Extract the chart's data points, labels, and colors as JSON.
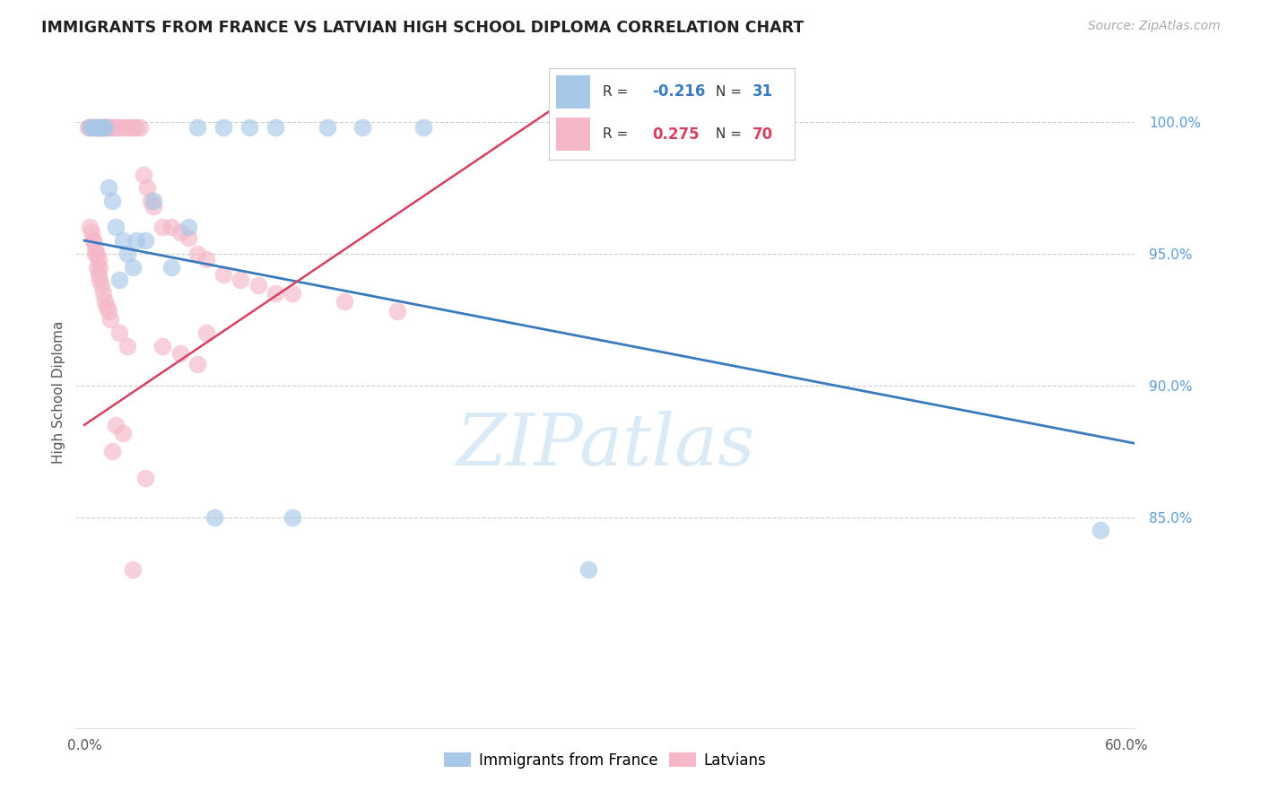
{
  "title": "IMMIGRANTS FROM FRANCE VS LATVIAN HIGH SCHOOL DIPLOMA CORRELATION CHART",
  "source": "Source: ZipAtlas.com",
  "ylabel": "High School Diploma",
  "ytick_values": [
    0.85,
    0.9,
    0.95,
    1.0
  ],
  "xlim": [
    -0.005,
    0.605
  ],
  "ylim": [
    0.77,
    1.025
  ],
  "legend_r_blue": "-0.216",
  "legend_n_blue": "31",
  "legend_r_pink": "0.275",
  "legend_n_pink": "70",
  "blue_scatter_color": "#a8c8e8",
  "pink_scatter_color": "#f4b8c8",
  "blue_line_color": "#3a7abf",
  "pink_line_color": "#d64060",
  "ytick_color": "#5b9bd5",
  "watermark_color": "#daeaf7",
  "blue_line_x": [
    0.0,
    0.605
  ],
  "blue_line_y": [
    0.955,
    0.878
  ],
  "pink_line_x": [
    0.0,
    0.27
  ],
  "pink_line_y": [
    0.885,
    1.005
  ],
  "blue_scatter_x": [
    0.003,
    0.005,
    0.007,
    0.009,
    0.01,
    0.011,
    0.012,
    0.014,
    0.016,
    0.018,
    0.022,
    0.025,
    0.03,
    0.04,
    0.05,
    0.06,
    0.065,
    0.08,
    0.095,
    0.11,
    0.14,
    0.16,
    0.195,
    0.585,
    0.35,
    0.02,
    0.028,
    0.035,
    0.075,
    0.12,
    0.29
  ],
  "blue_scatter_y": [
    0.998,
    0.998,
    0.998,
    0.998,
    0.998,
    0.998,
    0.998,
    0.975,
    0.97,
    0.96,
    0.955,
    0.95,
    0.955,
    0.97,
    0.945,
    0.96,
    0.998,
    0.998,
    0.998,
    0.998,
    0.998,
    0.998,
    0.998,
    0.845,
    0.998,
    0.94,
    0.945,
    0.955,
    0.85,
    0.85,
    0.83
  ],
  "pink_scatter_x": [
    0.002,
    0.003,
    0.004,
    0.005,
    0.006,
    0.007,
    0.008,
    0.009,
    0.01,
    0.011,
    0.012,
    0.013,
    0.014,
    0.015,
    0.016,
    0.017,
    0.018,
    0.02,
    0.022,
    0.024,
    0.026,
    0.028,
    0.03,
    0.032,
    0.034,
    0.036,
    0.038,
    0.04,
    0.045,
    0.05,
    0.055,
    0.06,
    0.065,
    0.07,
    0.08,
    0.09,
    0.1,
    0.11,
    0.12,
    0.005,
    0.006,
    0.007,
    0.008,
    0.009,
    0.01,
    0.011,
    0.012,
    0.013,
    0.014,
    0.015,
    0.003,
    0.004,
    0.005,
    0.006,
    0.007,
    0.008,
    0.009,
    0.15,
    0.18,
    0.07,
    0.045,
    0.055,
    0.065,
    0.02,
    0.025,
    0.018,
    0.022,
    0.016,
    0.035,
    0.028
  ],
  "pink_scatter_y": [
    0.998,
    0.998,
    0.998,
    0.998,
    0.998,
    0.998,
    0.998,
    0.998,
    0.998,
    0.998,
    0.998,
    0.998,
    0.998,
    0.998,
    0.998,
    0.998,
    0.998,
    0.998,
    0.998,
    0.998,
    0.998,
    0.998,
    0.998,
    0.998,
    0.98,
    0.975,
    0.97,
    0.968,
    0.96,
    0.96,
    0.958,
    0.956,
    0.95,
    0.948,
    0.942,
    0.94,
    0.938,
    0.935,
    0.935,
    0.955,
    0.95,
    0.945,
    0.942,
    0.94,
    0.938,
    0.935,
    0.932,
    0.93,
    0.928,
    0.925,
    0.96,
    0.958,
    0.955,
    0.952,
    0.95,
    0.948,
    0.945,
    0.932,
    0.928,
    0.92,
    0.915,
    0.912,
    0.908,
    0.92,
    0.915,
    0.885,
    0.882,
    0.875,
    0.865,
    0.83
  ]
}
